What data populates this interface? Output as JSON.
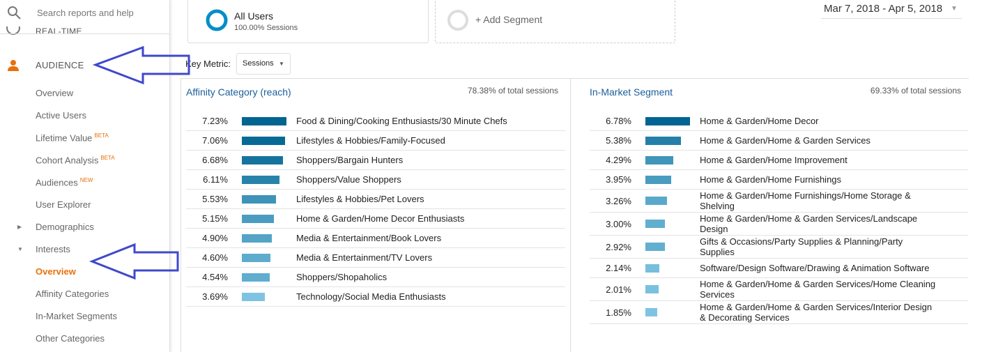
{
  "sidebar": {
    "search_placeholder": "Search reports and help",
    "realtime": "REAL-TIME",
    "section": "AUDIENCE",
    "items": [
      {
        "label": "Overview"
      },
      {
        "label": "Active Users"
      },
      {
        "label": "Lifetime Value",
        "badge": "BETA"
      },
      {
        "label": "Cohort Analysis",
        "badge": "BETA"
      },
      {
        "label": "Audiences",
        "badge": "NEW"
      },
      {
        "label": "User Explorer"
      }
    ],
    "demographics": "Demographics",
    "interests": "Interests",
    "interest_items": [
      "Overview",
      "Affinity Categories",
      "In-Market Segments",
      "Other Categories"
    ]
  },
  "header": {
    "segment": {
      "name": "All Users",
      "detail": "100.00% Sessions"
    },
    "add_segment": "+ Add Segment",
    "date_range": "Mar 7, 2018 - Apr 5, 2018",
    "key_metric_label": "Key Metric:",
    "key_metric": "Sessions"
  },
  "panels": [
    {
      "title": "Affinity Category (reach)",
      "total": "78.38% of total sessions",
      "rows": [
        {
          "value": 7.23,
          "value_label": "7.23%",
          "name": "Food & Dining/Cooking Enthusiasts/30 Minute Chefs"
        },
        {
          "value": 7.06,
          "value_label": "7.06%",
          "name": "Lifestyles & Hobbies/Family-Focused"
        },
        {
          "value": 6.68,
          "value_label": "6.68%",
          "name": "Shoppers/Bargain Hunters"
        },
        {
          "value": 6.11,
          "value_label": "6.11%",
          "name": "Shoppers/Value Shoppers"
        },
        {
          "value": 5.53,
          "value_label": "5.53%",
          "name": "Lifestyles & Hobbies/Pet Lovers"
        },
        {
          "value": 5.15,
          "value_label": "5.15%",
          "name": "Home & Garden/Home Decor Enthusiasts"
        },
        {
          "value": 4.9,
          "value_label": "4.90%",
          "name": "Media & Entertainment/Book Lovers"
        },
        {
          "value": 4.6,
          "value_label": "4.60%",
          "name": "Media & Entertainment/TV Lovers"
        },
        {
          "value": 4.54,
          "value_label": "4.54%",
          "name": "Shoppers/Shopaholics"
        },
        {
          "value": 3.69,
          "value_label": "3.69%",
          "name": "Technology/Social Media Enthusiasts"
        }
      ]
    },
    {
      "title": "In-Market Segment",
      "total": "69.33% of total sessions",
      "rows": [
        {
          "value": 6.78,
          "value_label": "6.78%",
          "name": "Home & Garden/Home Decor"
        },
        {
          "value": 5.38,
          "value_label": "5.38%",
          "name": "Home & Garden/Home & Garden Services"
        },
        {
          "value": 4.29,
          "value_label": "4.29%",
          "name": "Home & Garden/Home Improvement"
        },
        {
          "value": 3.95,
          "value_label": "3.95%",
          "name": "Home & Garden/Home Furnishings"
        },
        {
          "value": 3.26,
          "value_label": "3.26%",
          "name": "Home & Garden/Home Furnishings/Home Storage & Shelving"
        },
        {
          "value": 3.0,
          "value_label": "3.00%",
          "name": "Home & Garden/Home & Garden Services/Landscape Design"
        },
        {
          "value": 2.92,
          "value_label": "2.92%",
          "name": "Gifts & Occasions/Party Supplies & Planning/Party Supplies"
        },
        {
          "value": 2.14,
          "value_label": "2.14%",
          "name": "Software/Design Software/Drawing & Animation Software"
        },
        {
          "value": 2.01,
          "value_label": "2.01%",
          "name": "Home & Garden/Home & Garden Services/Home Cleaning Services"
        },
        {
          "value": 1.85,
          "value_label": "1.85%",
          "name": "Home & Garden/Home & Garden Services/Interior Design & Decorating Services"
        }
      ]
    }
  ]
}
